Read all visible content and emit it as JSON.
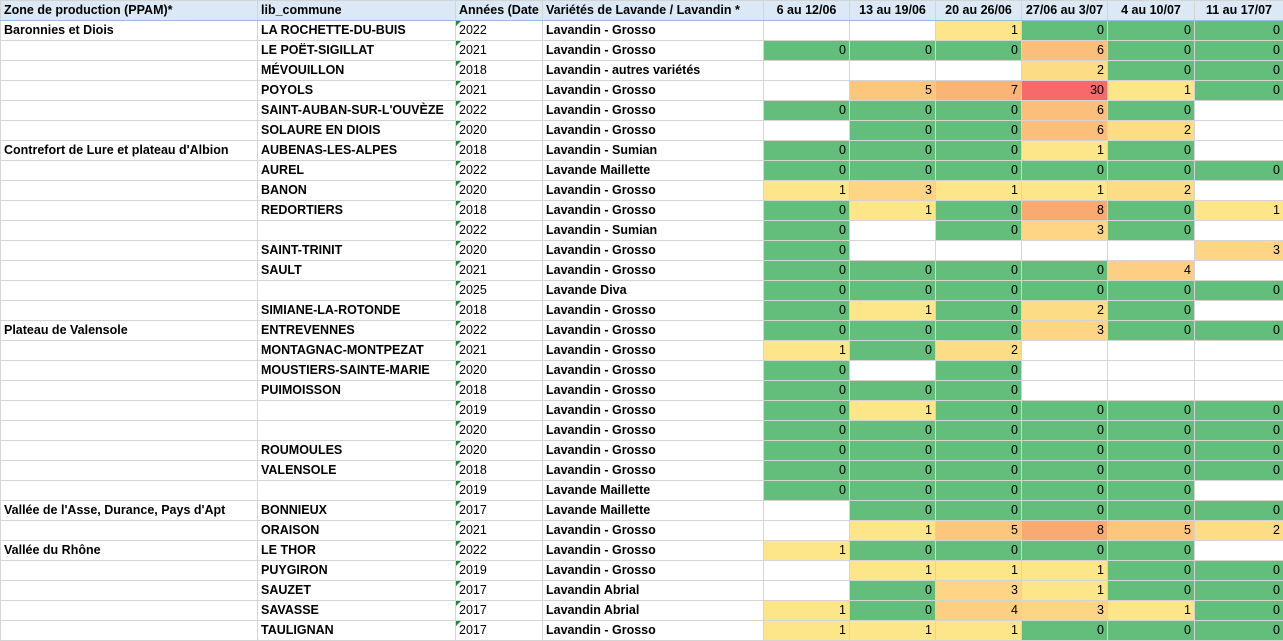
{
  "headers": {
    "zone": "Zone de production (PPAM)*",
    "commune": "lib_commune",
    "year": "Années (Date",
    "variety": "Variétés de Lavande / Lavandin *",
    "weeks": [
      "6 au 12/06",
      "13 au 19/06",
      "20 au 26/06",
      "27/06 au 3/07",
      "4 au 10/07",
      "11 au 17/07"
    ]
  },
  "rows": [
    {
      "zone": "Baronnies et Diois",
      "commune": "LA ROCHETTE-DU-BUIS",
      "year": "2022",
      "variety": "Lavandin - Grosso",
      "w": [
        "",
        "",
        "1",
        "0",
        "0",
        "0"
      ]
    },
    {
      "zone": "",
      "commune": "LE POËT-SIGILLAT",
      "year": "2021",
      "variety": "Lavandin - Grosso",
      "w": [
        "0",
        "0",
        "0",
        "6",
        "0",
        "0"
      ]
    },
    {
      "zone": "",
      "commune": "MÉVOUILLON",
      "year": "2018",
      "variety": "Lavandin - autres variétés",
      "w": [
        "",
        "",
        "",
        "2",
        "0",
        "0"
      ]
    },
    {
      "zone": "",
      "commune": "POYOLS",
      "year": "2021",
      "variety": "Lavandin - Grosso",
      "w": [
        "",
        "5",
        "7",
        "30",
        "1",
        "0"
      ]
    },
    {
      "zone": "",
      "commune": "SAINT-AUBAN-SUR-L'OUVÈZE",
      "year": "2022",
      "variety": "Lavandin - Grosso",
      "w": [
        "0",
        "0",
        "0",
        "6",
        "0",
        ""
      ]
    },
    {
      "zone": "",
      "commune": "SOLAURE EN DIOIS",
      "year": "2020",
      "variety": "Lavandin - Grosso",
      "w": [
        "",
        "0",
        "0",
        "6",
        "2",
        ""
      ]
    },
    {
      "zone": "Contrefort de Lure et plateau d'Albion",
      "commune": "AUBENAS-LES-ALPES",
      "year": "2018",
      "variety": "Lavandin - Sumian",
      "w": [
        "0",
        "0",
        "0",
        "1",
        "0",
        ""
      ]
    },
    {
      "zone": "",
      "commune": "AUREL",
      "year": "2022",
      "variety": "Lavande Maillette",
      "w": [
        "0",
        "0",
        "0",
        "0",
        "0",
        "0"
      ]
    },
    {
      "zone": "",
      "commune": "BANON",
      "year": "2020",
      "variety": "Lavandin - Grosso",
      "w": [
        "1",
        "3",
        "1",
        "1",
        "2",
        ""
      ]
    },
    {
      "zone": "",
      "commune": "REDORTIERS",
      "year": "2018",
      "variety": "Lavandin - Grosso",
      "w": [
        "0",
        "1",
        "0",
        "8",
        "0",
        "1"
      ]
    },
    {
      "zone": "",
      "commune": "",
      "year": "2022",
      "variety": "Lavandin - Sumian",
      "w": [
        "0",
        "",
        "0",
        "3",
        "0",
        ""
      ]
    },
    {
      "zone": "",
      "commune": "SAINT-TRINIT",
      "year": "2020",
      "variety": "Lavandin - Grosso",
      "w": [
        "0",
        "",
        "",
        "",
        "",
        "3"
      ]
    },
    {
      "zone": "",
      "commune": "SAULT",
      "year": "2021",
      "variety": "Lavandin - Grosso",
      "w": [
        "0",
        "0",
        "0",
        "0",
        "4",
        ""
      ]
    },
    {
      "zone": "",
      "commune": "",
      "year": "2025",
      "variety": "Lavande Diva",
      "w": [
        "0",
        "0",
        "0",
        "0",
        "0",
        "0"
      ]
    },
    {
      "zone": "",
      "commune": "SIMIANE-LA-ROTONDE",
      "year": "2018",
      "variety": "Lavandin - Grosso",
      "w": [
        "0",
        "1",
        "0",
        "2",
        "0",
        ""
      ]
    },
    {
      "zone": "Plateau de Valensole",
      "commune": "ENTREVENNES",
      "year": "2022",
      "variety": "Lavandin - Grosso",
      "w": [
        "0",
        "0",
        "0",
        "3",
        "0",
        "0"
      ]
    },
    {
      "zone": "",
      "commune": "MONTAGNAC-MONTPEZAT",
      "year": "2021",
      "variety": "Lavandin - Grosso",
      "w": [
        "1",
        "0",
        "2",
        "",
        "",
        ""
      ]
    },
    {
      "zone": "",
      "commune": "MOUSTIERS-SAINTE-MARIE",
      "year": "2020",
      "variety": "Lavandin - Grosso",
      "w": [
        "0",
        "",
        "0",
        "",
        "",
        ""
      ]
    },
    {
      "zone": "",
      "commune": "PUIMOISSON",
      "year": "2018",
      "variety": "Lavandin - Grosso",
      "w": [
        "0",
        "0",
        "0",
        "",
        "",
        ""
      ]
    },
    {
      "zone": "",
      "commune": "",
      "year": "2019",
      "variety": "Lavandin - Grosso",
      "w": [
        "0",
        "1",
        "0",
        "0",
        "0",
        "0"
      ]
    },
    {
      "zone": "",
      "commune": "",
      "year": "2020",
      "variety": "Lavandin - Grosso",
      "w": [
        "0",
        "0",
        "0",
        "0",
        "0",
        "0"
      ]
    },
    {
      "zone": "",
      "commune": "ROUMOULES",
      "year": "2020",
      "variety": "Lavandin - Grosso",
      "w": [
        "0",
        "0",
        "0",
        "0",
        "0",
        "0"
      ]
    },
    {
      "zone": "",
      "commune": "VALENSOLE",
      "year": "2018",
      "variety": "Lavandin - Grosso",
      "w": [
        "0",
        "0",
        "0",
        "0",
        "0",
        "0"
      ]
    },
    {
      "zone": "",
      "commune": "",
      "year": "2019",
      "variety": "Lavande Maillette",
      "w": [
        "0",
        "0",
        "0",
        "0",
        "0",
        ""
      ]
    },
    {
      "zone": "Vallée de l'Asse, Durance, Pays d'Apt",
      "commune": "BONNIEUX",
      "year": "2017",
      "variety": "Lavande Maillette",
      "w": [
        "",
        "0",
        "0",
        "0",
        "0",
        "0"
      ]
    },
    {
      "zone": "",
      "commune": "ORAISON",
      "year": "2021",
      "variety": "Lavandin - Grosso",
      "w": [
        "",
        "1",
        "5",
        "8",
        "5",
        "2"
      ]
    },
    {
      "zone": "Vallée du Rhône",
      "commune": "LE THOR",
      "year": "2022",
      "variety": "Lavandin - Grosso",
      "w": [
        "1",
        "0",
        "0",
        "0",
        "0",
        ""
      ]
    },
    {
      "zone": "",
      "commune": "PUYGIRON",
      "year": "2019",
      "variety": "Lavandin - Grosso",
      "w": [
        "",
        "1",
        "1",
        "1",
        "0",
        "0"
      ]
    },
    {
      "zone": "",
      "commune": "SAUZET",
      "year": "2017",
      "variety": "Lavandin Abrial",
      "w": [
        "",
        "0",
        "3",
        "1",
        "0",
        "0"
      ]
    },
    {
      "zone": "",
      "commune": "SAVASSE",
      "year": "2017",
      "variety": "Lavandin Abrial",
      "w": [
        "1",
        "0",
        "4",
        "3",
        "1",
        "0"
      ]
    },
    {
      "zone": "",
      "commune": "TAULIGNAN",
      "year": "2017",
      "variety": "Lavandin - Grosso",
      "w": [
        "1",
        "1",
        "1",
        "0",
        "0",
        "0"
      ]
    }
  ],
  "colors": {
    "zero": "#63be7b",
    "low": "#fde68a",
    "mid": "#fbbf7b",
    "high": "#f8696b",
    "header_bg": "#dbe9f7"
  }
}
